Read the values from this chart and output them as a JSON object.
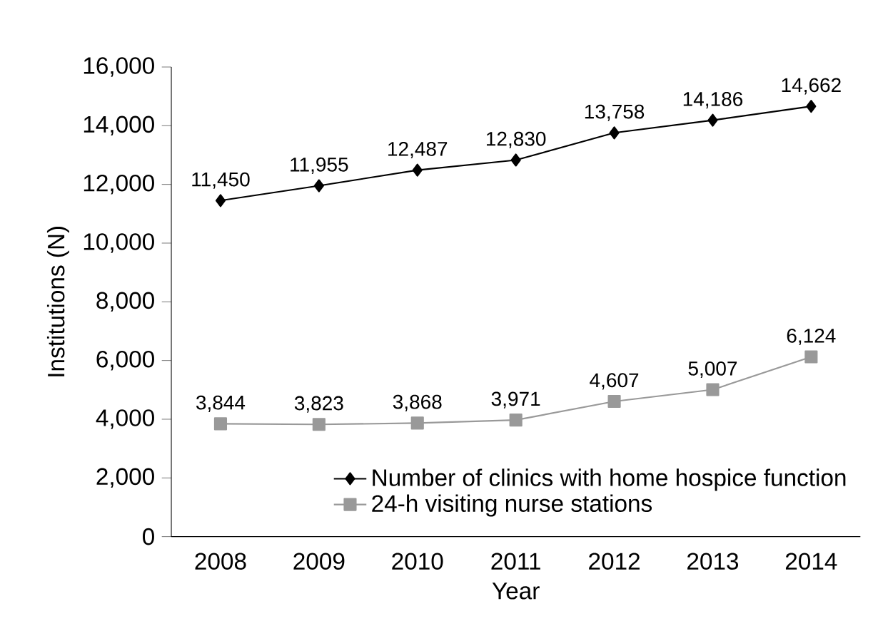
{
  "chart_data": {
    "type": "line",
    "xlabel": "Year",
    "ylabel": "Institutions (N)",
    "categories": [
      "2008",
      "2009",
      "2010",
      "2011",
      "2012",
      "2013",
      "2014"
    ],
    "ylim": [
      0,
      16000
    ],
    "yticks": [
      0,
      {
        "value": 2000,
        "label": "2,000"
      },
      {
        "value": 4000,
        "label": "4,000"
      },
      {
        "value": 6000,
        "label": "6,000"
      },
      {
        "value": 8000,
        "label": "8,000"
      },
      {
        "value": 10000,
        "label": "10,000"
      },
      {
        "value": 12000,
        "label": "12,000"
      },
      {
        "value": 14000,
        "label": "14,000"
      },
      {
        "value": 16000,
        "label": "16,000"
      }
    ],
    "grid": false,
    "legend": "bottom right",
    "line_style": "solid",
    "series": [
      {
        "name": "Number of clinics with home hospice function",
        "color": "#000000",
        "marker": "diamond",
        "values": [
          11450,
          11955,
          12487,
          12830,
          13758,
          14186,
          14662
        ],
        "value_labels": [
          "11,450",
          "11,955",
          "12,487",
          "12,830",
          "13,758",
          "14,186",
          "14,662"
        ]
      },
      {
        "name": "24-h visiting nurse stations",
        "color": "#999999",
        "marker": "square",
        "values": [
          3844,
          3823,
          3868,
          3971,
          4607,
          5007,
          6124
        ],
        "value_labels": [
          "3,844",
          "3,823",
          "3,868",
          "3,971",
          "4,607",
          "5,007",
          "6,124"
        ]
      }
    ]
  }
}
